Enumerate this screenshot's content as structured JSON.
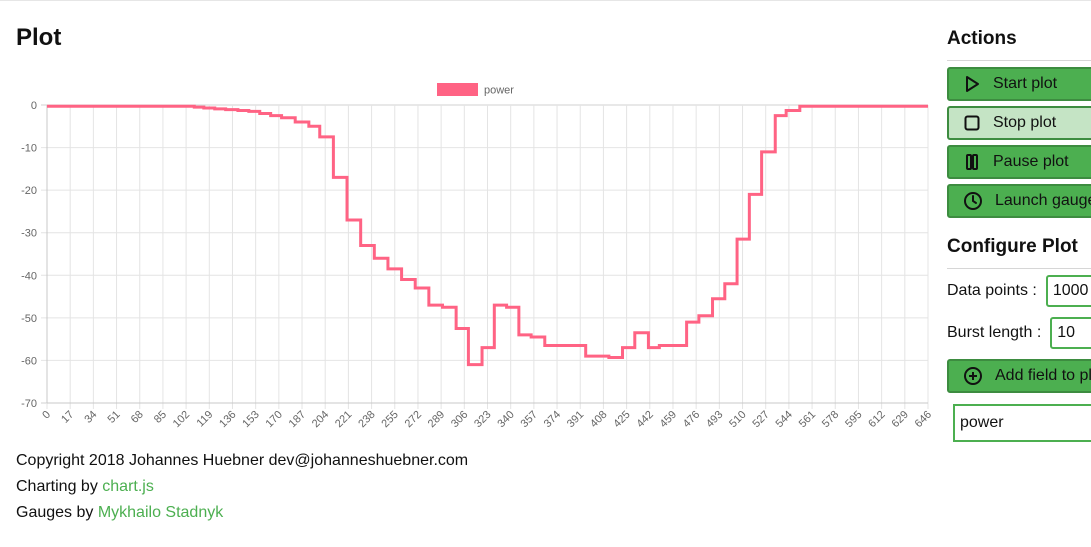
{
  "page": {
    "title": "Plot"
  },
  "chart_data": {
    "type": "line",
    "legend": {
      "label": "power",
      "color": "#ff6384",
      "position": "top"
    },
    "grid": true,
    "ylim": [
      -70,
      0
    ],
    "y_ticks": [
      "0",
      "-10",
      "-20",
      "-30",
      "-40",
      "-50",
      "-60",
      "-70"
    ],
    "x_ticks": [
      "0",
      "17",
      "34",
      "51",
      "68",
      "85",
      "102",
      "119",
      "136",
      "153",
      "170",
      "187",
      "204",
      "221",
      "238",
      "255",
      "272",
      "289",
      "306",
      "323",
      "340",
      "357",
      "374",
      "391",
      "408",
      "425",
      "442",
      "459",
      "476",
      "493",
      "510",
      "527",
      "544",
      "561",
      "578",
      "595",
      "612",
      "629",
      "646"
    ],
    "series": [
      {
        "name": "power",
        "color": "#ff6384",
        "step_points": [
          [
            0,
            -0.3
          ],
          [
            102,
            -0.3
          ],
          [
            108,
            -0.5
          ],
          [
            115,
            -0.7
          ],
          [
            123,
            -0.9
          ],
          [
            131,
            -1.1
          ],
          [
            140,
            -1.3
          ],
          [
            148,
            -1.5
          ],
          [
            156,
            -2.0
          ],
          [
            164,
            -2.0
          ],
          [
            164,
            -2.5
          ],
          [
            172,
            -3.0
          ],
          [
            182,
            -4.0
          ],
          [
            192,
            -5.0
          ],
          [
            200,
            -7.5
          ],
          [
            210,
            -17.0
          ],
          [
            220,
            -27.0
          ],
          [
            230,
            -33.0
          ],
          [
            240,
            -36.0
          ],
          [
            250,
            -38.5
          ],
          [
            260,
            -41.0
          ],
          [
            270,
            -43.0
          ],
          [
            280,
            -47.0
          ],
          [
            290,
            -47.5
          ],
          [
            300,
            -52.5
          ],
          [
            309,
            -61.0
          ],
          [
            319,
            -57.0
          ],
          [
            328,
            -47.0
          ],
          [
            337,
            -47.5
          ],
          [
            346,
            -54.0
          ],
          [
            355,
            -54.5
          ],
          [
            365,
            -56.5
          ],
          [
            376,
            -56.5
          ],
          [
            385,
            -56.5
          ],
          [
            395,
            -59.0
          ],
          [
            403,
            -59.0
          ],
          [
            412,
            -59.3
          ],
          [
            422,
            -57.0
          ],
          [
            431,
            -53.5
          ],
          [
            441,
            -57.0
          ],
          [
            449,
            -56.5
          ],
          [
            459,
            -56.5
          ],
          [
            469,
            -51.0
          ],
          [
            478,
            -49.5
          ],
          [
            488,
            -45.5
          ],
          [
            497,
            -42.0
          ],
          [
            506,
            -31.5
          ],
          [
            515,
            -21.0
          ],
          [
            524,
            -11.0
          ],
          [
            534,
            -2.5
          ],
          [
            542,
            -1.3
          ],
          [
            552,
            -0.3
          ],
          [
            646,
            -0.3
          ]
        ]
      }
    ]
  },
  "footer": {
    "copyright": "Copyright 2018 Johannes Huebner dev@johanneshuebner.com",
    "charting_prefix": "Charting by ",
    "charting_link": "chart.js",
    "gauges_prefix": "Gauges by ",
    "gauges_link": "Mykhailo Stadnyk"
  },
  "sidebar": {
    "actions_title": "Actions",
    "buttons": {
      "start": "Start plot",
      "stop": "Stop plot",
      "pause": "Pause plot",
      "gauge": "Launch gauge"
    },
    "configure_title": "Configure Plot",
    "data_points_label": "Data points :",
    "data_points_value": "1000",
    "burst_length_label": "Burst length :",
    "burst_length_value": "10",
    "add_field_label": "Add field to plot",
    "field_value": "power"
  },
  "icons": {
    "start": "play-icon",
    "stop": "stop-icon",
    "pause": "pause-icon",
    "gauge": "clock-icon",
    "add": "plus-circle-icon"
  }
}
